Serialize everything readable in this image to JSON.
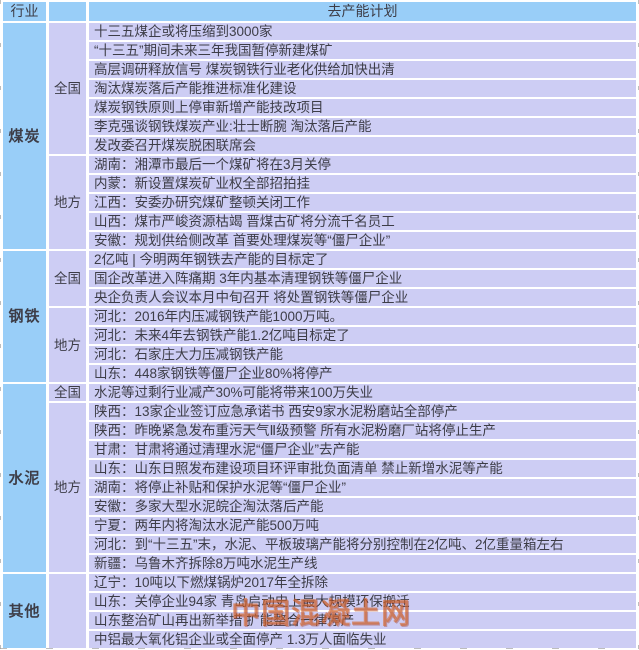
{
  "header": {
    "industry_col": "行业",
    "mid_col": "",
    "plan_col": "去产能计划"
  },
  "table": {
    "sections": [
      {
        "industry": "煤炭",
        "groups": [
          {
            "scope": "全国",
            "items": [
              "十三五煤企或将压缩到3000家",
              "“十三五”期间未来三年我国暂停新建煤矿",
              "高层调研释放信号 煤炭钢铁行业老化供给加快出清",
              "淘汰煤炭落后产能推进标准化建设",
              "煤炭钢铁原则上停审新增产能技改项目",
              "李克强谈钢铁煤炭产业:壮士断腕 淘汰落后产能",
              "发改委召开煤炭脱困联席会"
            ]
          },
          {
            "scope": "地方",
            "items": [
              "湖南：湘潭市最后一个煤矿将在3月关停",
              "内蒙：新设置煤炭矿业权全部招拍挂",
              "江西：安委办研究煤矿整顿关闭工作",
              "山西：煤市严峻资源枯竭 晋煤古矿将分流千名员工",
              "安徽：规划供给侧改革 首要处理煤炭等“僵尸企业”"
            ]
          }
        ]
      },
      {
        "industry": "钢铁",
        "groups": [
          {
            "scope": "全国",
            "items": [
              "2亿吨 | 今明两年钢铁去产能的目标定了",
              "国企改革进入阵痛期 3年内基本清理钢铁等僵尸企业",
              "央企负责人会议本月中旬召开 将处置钢铁等僵尸企业"
            ]
          },
          {
            "scope": "地方",
            "items": [
              "河北：2016年内压减钢铁产能1000万吨。",
              "河北：未来4年去钢铁产能1.2亿吨目标定了",
              "河北：石家庄大力压减钢铁产能",
              "山东：448家钢铁等僵尸企业80%将停产"
            ]
          }
        ]
      },
      {
        "industry": "水泥",
        "groups": [
          {
            "scope": "全国",
            "items": [
              "水泥等过剩行业减产30%可能将带来100万失业"
            ]
          },
          {
            "scope": "地方",
            "items": [
              "陕西：13家企业签订应急承诺书 西安9家水泥粉磨站全部停产",
              "陕西：昨晚紧急发布重污天气Ⅱ级预警 所有水泥粉磨厂站将停止生产",
              "甘肃：甘肃将通过清理水泥“僵尸企业”去产能",
              "山东：山东日照发布建设项目环评审批负面清单 禁止新增水泥等产能",
              "湖南：将停止补贴和保护水泥等“僵尸企业”",
              "安徽：多家大型水泥皖企淘汰落后产能",
              "宁夏：两年内将淘汰水泥产能500万吨",
              "河北：到“十三五”末，水泥、平板玻璃产能将分别控制在2亿吨、2亿重量箱左右",
              "新疆：乌鲁木齐拆除8万吨水泥生产线"
            ]
          }
        ]
      },
      {
        "industry": "其他",
        "groups": [
          {
            "scope": "",
            "items": [
              "辽宁：10吨以下燃煤锅炉2017年全拆除",
              "山东：关停企业94家 青岛启动史上最大规模环保搬迁",
              "山东整治矿山再出新举措 扩能整合一律停产",
              "中铝最大氧化铝企业或全面停产 1.3万人面临失业"
            ]
          }
        ]
      }
    ]
  },
  "watermark": "中国混凝土网",
  "colors": {
    "header_blue": "#99CEF8",
    "cell_lavender": "#CDCDF4",
    "text": "#3D3D47",
    "watermark_orange": "#D66A30"
  }
}
